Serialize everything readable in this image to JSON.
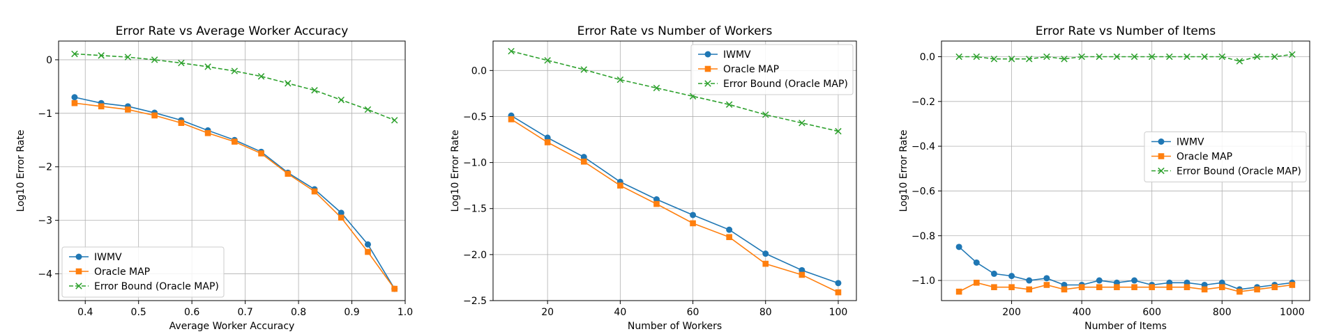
{
  "figure": {
    "colors": {
      "iwmv": "#1f77b4",
      "oracle": "#ff7f0e",
      "bound": "#2ca02c"
    }
  },
  "chart_data": [
    {
      "type": "line",
      "title": "Error Rate vs Average Worker Accuracy",
      "xlabel": "Average Worker Accuracy",
      "ylabel": "Log10 Error Rate",
      "xlim": [
        0.35,
        1.0
      ],
      "ylim": [
        -4.5,
        0.35
      ],
      "xticks": [
        0.4,
        0.5,
        0.6,
        0.7,
        0.8,
        0.9,
        1.0
      ],
      "xtick_labels": [
        "0.4",
        "0.5",
        "0.6",
        "0.7",
        "0.8",
        "0.9",
        "1.0"
      ],
      "yticks": [
        -4,
        -3,
        -2,
        -1,
        0
      ],
      "ytick_labels": [
        "−4",
        "−3",
        "−2",
        "−1",
        "0"
      ],
      "grid": true,
      "legend_position": "lower-left",
      "x": [
        0.38,
        0.43,
        0.48,
        0.53,
        0.58,
        0.63,
        0.68,
        0.73,
        0.78,
        0.83,
        0.88,
        0.93,
        0.98
      ],
      "series": [
        {
          "name": "IWMV",
          "color": "#1f77b4",
          "marker": "circle",
          "dash": "solid",
          "values": [
            -0.7,
            -0.81,
            -0.87,
            -0.99,
            -1.13,
            -1.32,
            -1.5,
            -1.72,
            -2.11,
            -2.42,
            -2.86,
            -3.45,
            -4.28
          ]
        },
        {
          "name": "Oracle MAP",
          "color": "#ff7f0e",
          "marker": "square",
          "dash": "solid",
          "values": [
            -0.81,
            -0.87,
            -0.93,
            -1.04,
            -1.18,
            -1.37,
            -1.53,
            -1.75,
            -2.13,
            -2.46,
            -2.95,
            -3.59,
            -4.28
          ]
        },
        {
          "name": "Error Bound (Oracle MAP)",
          "color": "#2ca02c",
          "marker": "x",
          "dash": "dashed",
          "values": [
            0.11,
            0.08,
            0.05,
            0.0,
            -0.06,
            -0.13,
            -0.21,
            -0.31,
            -0.44,
            -0.57,
            -0.75,
            -0.93,
            -1.13
          ]
        }
      ]
    },
    {
      "type": "line",
      "title": "Error Rate vs Number of Workers",
      "xlabel": "Number of Workers",
      "ylabel": "Log10 Error Rate",
      "xlim": [
        5,
        105
      ],
      "ylim": [
        -2.5,
        0.32
      ],
      "xticks": [
        20,
        40,
        60,
        80,
        100
      ],
      "xtick_labels": [
        "20",
        "40",
        "60",
        "80",
        "100"
      ],
      "yticks": [
        -2.5,
        -2.0,
        -1.5,
        -1.0,
        -0.5,
        0.0
      ],
      "ytick_labels": [
        "−2.5",
        "−2.0",
        "−1.5",
        "−1.0",
        "−0.5",
        "0.0"
      ],
      "grid": true,
      "legend_position": "upper-right",
      "x": [
        10,
        20,
        30,
        40,
        50,
        60,
        70,
        80,
        90,
        100
      ],
      "series": [
        {
          "name": "IWMV",
          "color": "#1f77b4",
          "marker": "circle",
          "dash": "solid",
          "values": [
            -0.49,
            -0.73,
            -0.94,
            -1.21,
            -1.4,
            -1.57,
            -1.73,
            -1.99,
            -2.17,
            -2.31
          ]
        },
        {
          "name": "Oracle MAP",
          "color": "#ff7f0e",
          "marker": "square",
          "dash": "solid",
          "values": [
            -0.53,
            -0.78,
            -0.99,
            -1.25,
            -1.45,
            -1.66,
            -1.81,
            -2.1,
            -2.22,
            -2.41
          ]
        },
        {
          "name": "Error Bound (Oracle MAP)",
          "color": "#2ca02c",
          "marker": "x",
          "dash": "dashed",
          "values": [
            0.21,
            0.11,
            0.01,
            -0.1,
            -0.19,
            -0.28,
            -0.37,
            -0.48,
            -0.57,
            -0.66
          ]
        }
      ]
    },
    {
      "type": "line",
      "title": "Error Rate vs Number of Items",
      "xlabel": "Number of Items",
      "ylabel": "Log10 Error Rate",
      "xlim": [
        0,
        1050
      ],
      "ylim": [
        -1.09,
        0.07
      ],
      "xticks": [
        200,
        400,
        600,
        800,
        1000
      ],
      "xtick_labels": [
        "200",
        "400",
        "600",
        "800",
        "1000"
      ],
      "yticks": [
        -1.0,
        -0.8,
        -0.6,
        -0.4,
        -0.2,
        0.0
      ],
      "ytick_labels": [
        "−1.0",
        "−0.8",
        "−0.6",
        "−0.4",
        "−0.2",
        "0.0"
      ],
      "grid": true,
      "legend_position": "center-right",
      "x": [
        50,
        100,
        150,
        200,
        250,
        300,
        350,
        400,
        450,
        500,
        550,
        600,
        650,
        700,
        750,
        800,
        850,
        900,
        950,
        1000
      ],
      "series": [
        {
          "name": "IWMV",
          "color": "#1f77b4",
          "marker": "circle",
          "dash": "solid",
          "values": [
            -0.85,
            -0.92,
            -0.97,
            -0.98,
            -1.0,
            -0.99,
            -1.02,
            -1.02,
            -1.0,
            -1.01,
            -1.0,
            -1.02,
            -1.01,
            -1.01,
            -1.02,
            -1.01,
            -1.04,
            -1.03,
            -1.02,
            -1.01
          ]
        },
        {
          "name": "Oracle MAP",
          "color": "#ff7f0e",
          "marker": "square",
          "dash": "solid",
          "values": [
            -1.05,
            -1.01,
            -1.03,
            -1.03,
            -1.04,
            -1.02,
            -1.04,
            -1.03,
            -1.03,
            -1.03,
            -1.03,
            -1.03,
            -1.03,
            -1.03,
            -1.04,
            -1.03,
            -1.05,
            -1.04,
            -1.03,
            -1.02
          ]
        },
        {
          "name": "Error Bound (Oracle MAP)",
          "color": "#2ca02c",
          "marker": "x",
          "dash": "dashed",
          "values": [
            0.0,
            0.0,
            -0.01,
            -0.01,
            -0.01,
            0.0,
            -0.01,
            0.0,
            0.0,
            0.0,
            0.0,
            0.0,
            0.0,
            0.0,
            0.0,
            0.0,
            -0.02,
            0.0,
            0.0,
            0.01
          ]
        }
      ]
    }
  ]
}
